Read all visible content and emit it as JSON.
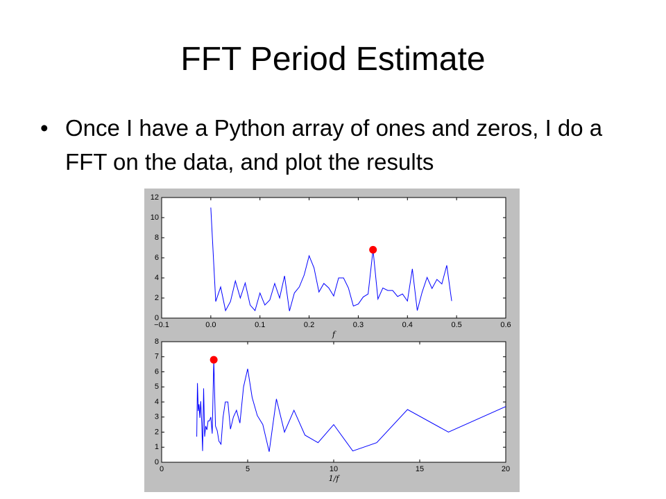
{
  "slide": {
    "title": "FFT Period Estimate",
    "bullet": "Once I have a Python array of ones and zeros, I do a FFT on the data, and plot the results"
  },
  "chart_data": [
    {
      "type": "line",
      "xlabel": "f",
      "x": [
        0,
        0.01,
        0.02,
        0.03,
        0.04,
        0.05,
        0.06,
        0.07,
        0.08,
        0.09,
        0.1,
        0.11,
        0.12,
        0.13,
        0.14,
        0.15,
        0.16,
        0.17,
        0.18,
        0.19,
        0.2,
        0.21,
        0.22,
        0.23,
        0.24,
        0.25,
        0.26,
        0.27,
        0.28,
        0.29,
        0.3,
        0.31,
        0.32,
        0.33,
        0.34,
        0.35,
        0.36,
        0.37,
        0.38,
        0.39,
        0.4,
        0.41,
        0.42,
        0.43,
        0.44,
        0.45,
        0.46,
        0.47,
        0.48,
        0.49
      ],
      "series": [
        {
          "color": "#0000ff",
          "values": [
            11,
            1.65,
            3.1,
            0.75,
            1.65,
            3.7,
            2.0,
            3.5,
            1.3,
            0.75,
            2.5,
            1.3,
            1.8,
            3.45,
            2.0,
            4.2,
            0.7,
            2.5,
            3.1,
            4.3,
            6.2,
            5.0,
            2.6,
            3.45,
            3.0,
            2.2,
            4.0,
            4.0,
            3.0,
            1.2,
            1.4,
            2.1,
            2.4,
            6.8,
            1.9,
            3.0,
            2.75,
            2.75,
            2.15,
            2.4,
            1.7,
            4.9,
            0.75,
            2.6,
            4.05,
            2.95,
            3.85,
            3.4,
            5.25,
            1.7
          ]
        }
      ],
      "highlight": {
        "x": 0.33,
        "value": 6.8,
        "color": "#ff0000"
      },
      "xlim": [
        -0.1,
        0.6
      ],
      "xticks": [
        {
          "value": -0.1,
          "label": "−0.1"
        },
        {
          "value": 0,
          "label": "0.0"
        },
        0.1,
        0.2,
        0.3,
        0.4,
        0.5,
        0.6
      ],
      "ylim": [
        0,
        12
      ],
      "yticks": [
        0,
        2,
        4,
        6,
        8,
        10,
        12
      ]
    },
    {
      "type": "line",
      "xlabel": "1/f",
      "x": [
        20,
        16.67,
        14.29,
        12.5,
        11.11,
        10,
        9.09,
        8.33,
        7.69,
        7.14,
        6.67,
        6.25,
        5.88,
        5.56,
        5.26,
        5,
        4.76,
        4.55,
        4.35,
        4.17,
        4,
        3.85,
        3.7,
        3.57,
        3.45,
        3.33,
        3.23,
        3.13,
        3.03,
        2.94,
        2.86,
        2.78,
        2.7,
        2.63,
        2.56,
        2.5,
        2.44,
        2.38,
        2.33,
        2.27,
        2.22,
        2.17,
        2.13,
        2.08,
        2.04
      ],
      "series": [
        {
          "color": "#0000ff",
          "values": [
            3.7,
            2.0,
            3.5,
            1.3,
            0.75,
            2.5,
            1.3,
            1.8,
            3.45,
            2.0,
            4.2,
            0.7,
            2.5,
            3.1,
            4.3,
            6.2,
            5.0,
            2.6,
            3.45,
            3.0,
            2.2,
            4.0,
            4.0,
            3.0,
            1.2,
            1.4,
            2.1,
            2.4,
            6.8,
            1.9,
            3.0,
            2.75,
            2.75,
            2.15,
            2.4,
            1.7,
            4.9,
            0.75,
            2.6,
            4.05,
            2.95,
            3.85,
            3.4,
            5.25,
            1.7
          ]
        }
      ],
      "highlight": {
        "x": 3.03,
        "value": 6.8,
        "color": "#ff0000"
      },
      "xlim": [
        0,
        20
      ],
      "xticks": [
        0,
        5,
        10,
        15,
        20
      ],
      "ylim": [
        0,
        8
      ],
      "yticks": [
        0,
        1,
        2,
        3,
        4,
        5,
        6,
        7,
        8
      ]
    }
  ]
}
